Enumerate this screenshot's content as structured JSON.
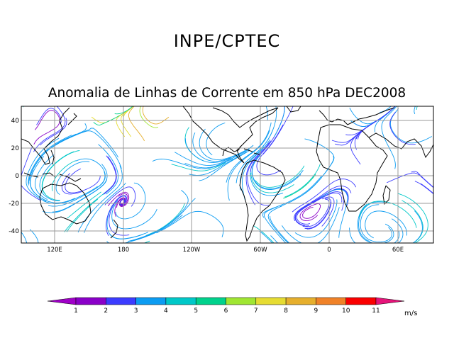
{
  "header": {
    "title": "INPE/CPTEC",
    "subtitle": "Anomalia de Linhas de Corrente em 850 hPa DEC2008"
  },
  "map": {
    "lat_ticks": [
      "40",
      "20",
      "0",
      "-20",
      "-40"
    ],
    "lon_ticks": [
      "120E",
      "180",
      "120W",
      "60W",
      "0",
      "60E"
    ]
  },
  "colorbar": {
    "labels": [
      "1",
      "2",
      "3",
      "4",
      "5",
      "6",
      "7",
      "8",
      "9",
      "10",
      "11"
    ],
    "unit": "m/s",
    "colors": [
      "#8a00c8",
      "#3c3cff",
      "#0c9cf2",
      "#00c8c8",
      "#00d28c",
      "#a0e632",
      "#e6dc32",
      "#e6af2d",
      "#f08228",
      "#fa0000",
      "#e6147a"
    ],
    "start_color": "#a000c8",
    "end_color": "#e6147a"
  }
}
